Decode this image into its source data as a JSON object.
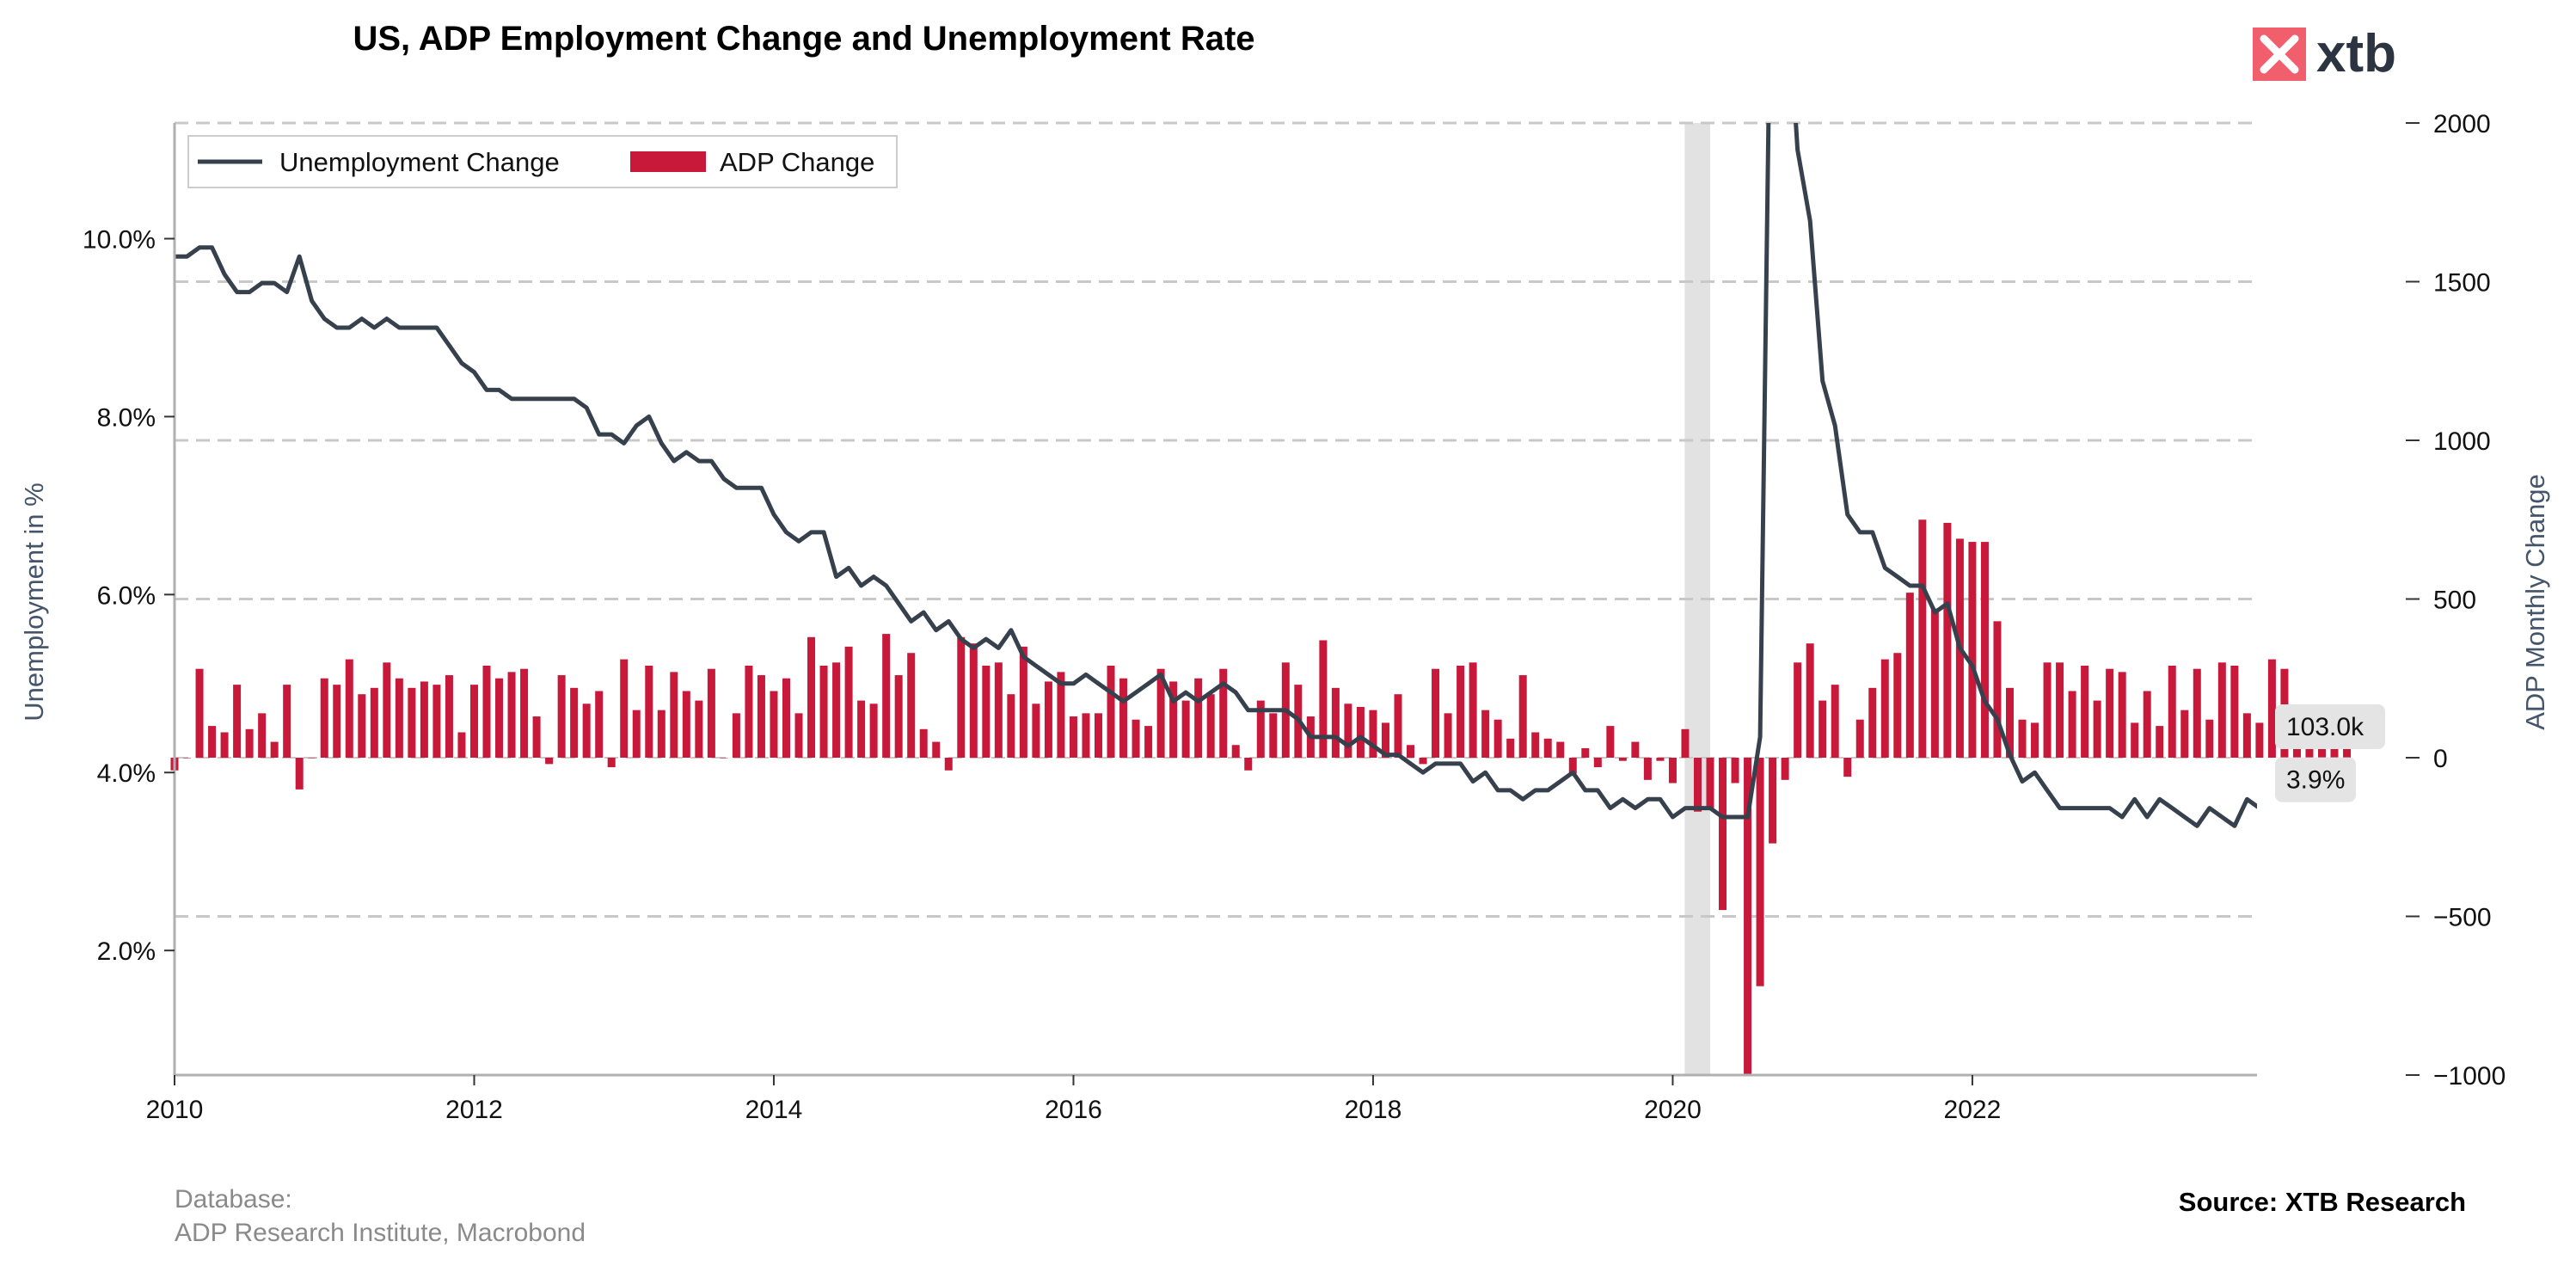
{
  "title": "US, ADP Employment Change and Unemployment Rate",
  "logo": {
    "text": "xtb",
    "color": "#f25f6c"
  },
  "footer": {
    "database_label": "Database:",
    "database_value": "ADP Research Institute, Macrobond",
    "source": "Source: XTB Research"
  },
  "colors": {
    "line": "#36414d",
    "bars": "#c8193b",
    "grid": "#c8c8c8",
    "shade": "#e2e2e2"
  },
  "chart_data": {
    "type": "bar+line",
    "title": "US, ADP Employment Change and Unemployment Rate",
    "x_ticks": [
      "2010",
      "2012",
      "2014",
      "2016",
      "2018",
      "2020",
      "2022"
    ],
    "x_range": [
      2010,
      2023.9
    ],
    "y_left": {
      "label": "Unemployment in %",
      "ticks": [
        "2.0%",
        "4.0%",
        "6.0%",
        "8.0%",
        "10.0%"
      ],
      "tick_values": [
        2,
        4,
        6,
        8,
        10
      ],
      "range": [
        0.6,
        11.3
      ]
    },
    "y_right": {
      "label": "ADP Monthly Change",
      "ticks": [
        "−1000",
        "−500",
        "0",
        "500",
        "1000",
        "1500",
        "2000"
      ],
      "tick_values": [
        -1000,
        -500,
        0,
        500,
        1000,
        1500,
        2000
      ],
      "range": [
        -1000,
        2000
      ]
    },
    "grid": "right-axis dashed horizontal",
    "legend": {
      "position": "top-left",
      "entries": [
        "Unemployment Change",
        "ADP Change"
      ]
    },
    "shaded_period": [
      2020.08,
      2020.25
    ],
    "series": [
      {
        "name": "Unemployment Change",
        "axis": "left",
        "start": 2010.0,
        "step": 0.083333,
        "values": [
          9.8,
          9.8,
          9.9,
          9.9,
          9.6,
          9.4,
          9.4,
          9.5,
          9.5,
          9.4,
          9.8,
          9.3,
          9.1,
          9.0,
          9.0,
          9.1,
          9.0,
          9.1,
          9.0,
          9.0,
          9.0,
          9.0,
          8.8,
          8.6,
          8.5,
          8.3,
          8.3,
          8.2,
          8.2,
          8.2,
          8.2,
          8.2,
          8.2,
          8.1,
          7.8,
          7.8,
          7.7,
          7.9,
          8.0,
          7.7,
          7.5,
          7.6,
          7.5,
          7.5,
          7.3,
          7.2,
          7.2,
          7.2,
          6.9,
          6.7,
          6.6,
          6.7,
          6.7,
          6.2,
          6.3,
          6.1,
          6.2,
          6.1,
          5.9,
          5.7,
          5.8,
          5.6,
          5.7,
          5.5,
          5.4,
          5.5,
          5.4,
          5.6,
          5.3,
          5.2,
          5.1,
          5.0,
          5.0,
          5.1,
          5.0,
          4.9,
          4.8,
          4.9,
          5.0,
          5.1,
          4.8,
          4.9,
          4.8,
          4.9,
          5.0,
          4.9,
          4.7,
          4.7,
          4.7,
          4.7,
          4.6,
          4.4,
          4.4,
          4.4,
          4.3,
          4.4,
          4.3,
          4.2,
          4.2,
          4.1,
          4.0,
          4.1,
          4.1,
          4.1,
          3.9,
          4.0,
          3.8,
          3.8,
          3.7,
          3.8,
          3.8,
          3.9,
          4.0,
          3.8,
          3.8,
          3.6,
          3.7,
          3.6,
          3.7,
          3.7,
          3.5,
          3.6,
          3.6,
          3.6,
          3.5,
          3.5,
          3.5,
          4.4,
          14.7,
          13.2,
          11.0,
          10.2,
          8.4,
          7.9,
          6.9,
          6.7,
          6.7,
          6.3,
          6.2,
          6.1,
          6.1,
          5.8,
          5.9,
          5.4,
          5.2,
          4.8,
          4.6,
          4.2,
          3.9,
          4.0,
          3.8,
          3.6,
          3.6,
          3.6,
          3.6,
          3.6,
          3.5,
          3.7,
          3.5,
          3.7,
          3.6,
          3.5,
          3.4,
          3.6,
          3.5,
          3.4,
          3.7,
          3.6,
          3.5,
          3.8,
          3.8,
          3.9
        ],
        "last_value_label": "3.9%"
      },
      {
        "name": "ADP Change",
        "axis": "right",
        "start": 2010.0,
        "step": 0.083333,
        "values": [
          -40,
          0,
          280,
          100,
          80,
          230,
          90,
          140,
          50,
          230,
          -100,
          0,
          250,
          230,
          310,
          200,
          220,
          300,
          250,
          220,
          240,
          230,
          260,
          80,
          230,
          290,
          250,
          270,
          280,
          130,
          -20,
          260,
          220,
          170,
          210,
          -30,
          310,
          150,
          290,
          150,
          270,
          210,
          180,
          280,
          0,
          140,
          290,
          260,
          210,
          250,
          140,
          380,
          290,
          300,
          350,
          180,
          170,
          390,
          260,
          330,
          90,
          50,
          -40,
          380,
          360,
          290,
          300,
          200,
          350,
          170,
          240,
          270,
          130,
          140,
          140,
          290,
          250,
          120,
          100,
          280,
          240,
          180,
          250,
          200,
          280,
          40,
          -40,
          180,
          140,
          300,
          230,
          130,
          370,
          220,
          170,
          160,
          150,
          110,
          200,
          40,
          -20,
          280,
          140,
          290,
          300,
          150,
          120,
          60,
          260,
          80,
          60,
          50,
          -50,
          30,
          -30,
          100,
          -10,
          50,
          -70,
          -10,
          -80,
          90,
          -170,
          -160,
          -480,
          -80,
          -1140,
          -720,
          -270,
          -70,
          300,
          360,
          180,
          230,
          -60,
          120,
          220,
          310,
          330,
          520,
          750,
          470,
          740,
          690,
          680,
          680,
          430,
          220,
          120,
          110,
          300,
          300,
          210,
          290,
          180,
          280,
          270,
          110,
          210,
          100,
          290,
          150,
          280,
          120,
          300,
          290,
          140,
          110,
          310,
          280,
          140,
          80,
          110,
          105,
          103
        ],
        "last_value_label": "103.0k"
      }
    ]
  }
}
